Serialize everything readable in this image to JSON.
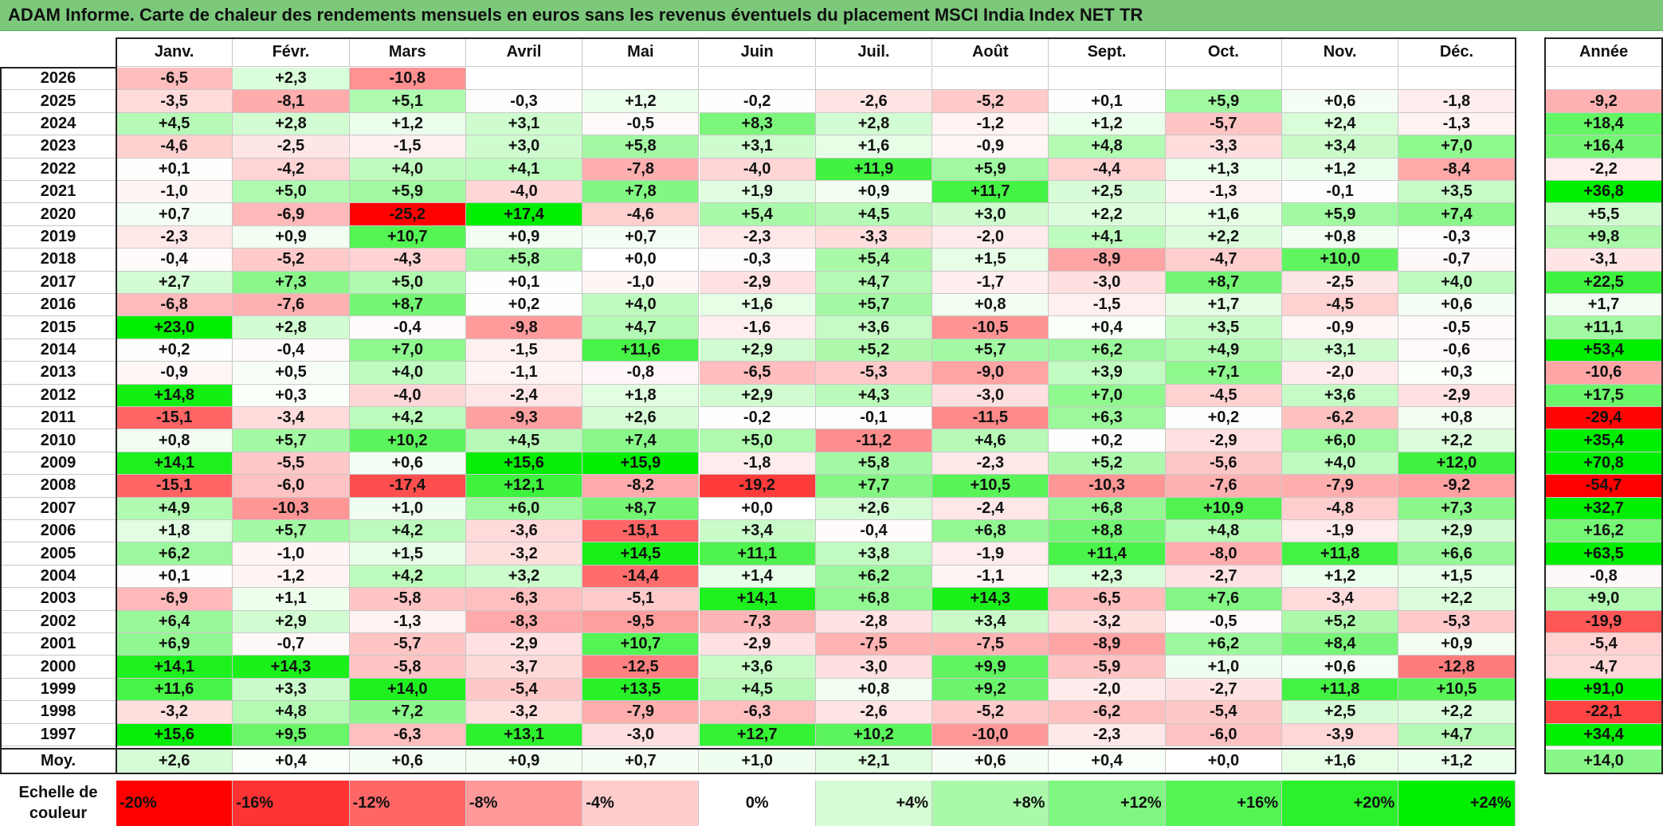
{
  "title": "ADAM Informe. Carte de chaleur des rendements mensuels en euros sans les revenus éventuels du placement MSCI India Index NET TR",
  "chart_data": {
    "type": "heatmap",
    "columns": [
      "Janv.",
      "Févr.",
      "Mars",
      "Avril",
      "Mai",
      "Juin",
      "Juil.",
      "Août",
      "Sept.",
      "Oct.",
      "Nov.",
      "Déc."
    ],
    "year_header": "Année",
    "rows": [
      {
        "year": "2026",
        "months": [
          "-6,5",
          "+2,3",
          "-10,8",
          "",
          "",
          "",
          "",
          "",
          "",
          "",
          "",
          ""
        ],
        "annual": ""
      },
      {
        "year": "2025",
        "months": [
          "-3,5",
          "-8,1",
          "+5,1",
          "-0,3",
          "+1,2",
          "-0,2",
          "-2,6",
          "-5,2",
          "+0,1",
          "+5,9",
          "+0,6",
          "-1,8"
        ],
        "annual": "-9,2"
      },
      {
        "year": "2024",
        "months": [
          "+4,5",
          "+2,8",
          "+1,2",
          "+3,1",
          "-0,5",
          "+8,3",
          "+2,8",
          "-1,2",
          "+1,2",
          "-5,7",
          "+2,4",
          "-1,3"
        ],
        "annual": "+18,4"
      },
      {
        "year": "2023",
        "months": [
          "-4,6",
          "-2,5",
          "-1,5",
          "+3,0",
          "+5,8",
          "+3,1",
          "+1,6",
          "-0,9",
          "+4,8",
          "-3,3",
          "+3,4",
          "+7,0"
        ],
        "annual": "+16,4"
      },
      {
        "year": "2022",
        "months": [
          "+0,1",
          "-4,2",
          "+4,0",
          "+4,1",
          "-7,8",
          "-4,0",
          "+11,9",
          "+5,9",
          "-4,4",
          "+1,3",
          "+1,2",
          "-8,4"
        ],
        "annual": "-2,2"
      },
      {
        "year": "2021",
        "months": [
          "-1,0",
          "+5,0",
          "+5,9",
          "-4,0",
          "+7,8",
          "+1,9",
          "+0,9",
          "+11,7",
          "+2,5",
          "-1,3",
          "-0,1",
          "+3,5"
        ],
        "annual": "+36,8"
      },
      {
        "year": "2020",
        "months": [
          "+0,7",
          "-6,9",
          "-25,2",
          "+17,4",
          "-4,6",
          "+5,4",
          "+4,5",
          "+3,0",
          "+2,2",
          "+1,6",
          "+5,9",
          "+7,4"
        ],
        "annual": "+5,5"
      },
      {
        "year": "2019",
        "months": [
          "-2,3",
          "+0,9",
          "+10,7",
          "+0,9",
          "+0,7",
          "-2,3",
          "-3,3",
          "-2,0",
          "+4,1",
          "+2,2",
          "+0,8",
          "-0,3"
        ],
        "annual": "+9,8"
      },
      {
        "year": "2018",
        "months": [
          "-0,4",
          "-5,2",
          "-4,3",
          "+5,8",
          "+0,0",
          "-0,3",
          "+5,4",
          "+1,5",
          "-8,9",
          "-4,7",
          "+10,0",
          "-0,7"
        ],
        "annual": "-3,1"
      },
      {
        "year": "2017",
        "months": [
          "+2,7",
          "+7,3",
          "+5,0",
          "+0,1",
          "-1,0",
          "-2,9",
          "+4,7",
          "-1,7",
          "-3,0",
          "+8,7",
          "-2,5",
          "+4,0"
        ],
        "annual": "+22,5"
      },
      {
        "year": "2016",
        "months": [
          "-6,8",
          "-7,6",
          "+8,7",
          "+0,2",
          "+4,0",
          "+1,6",
          "+5,7",
          "+0,8",
          "-1,5",
          "+1,7",
          "-4,5",
          "+0,6"
        ],
        "annual": "+1,7"
      },
      {
        "year": "2015",
        "months": [
          "+23,0",
          "+2,8",
          "-0,4",
          "-9,8",
          "+4,7",
          "-1,6",
          "+3,6",
          "-10,5",
          "+0,4",
          "+3,5",
          "-0,9",
          "-0,5"
        ],
        "annual": "+11,1"
      },
      {
        "year": "2014",
        "months": [
          "+0,2",
          "-0,4",
          "+7,0",
          "-1,5",
          "+11,6",
          "+2,9",
          "+5,2",
          "+5,7",
          "+6,2",
          "+4,9",
          "+3,1",
          "-0,6"
        ],
        "annual": "+53,4"
      },
      {
        "year": "2013",
        "months": [
          "-0,9",
          "+0,5",
          "+4,0",
          "-1,1",
          "-0,8",
          "-6,5",
          "-5,3",
          "-9,0",
          "+3,9",
          "+7,1",
          "-2,0",
          "+0,3"
        ],
        "annual": "-10,6"
      },
      {
        "year": "2012",
        "months": [
          "+14,8",
          "+0,3",
          "-4,0",
          "-2,4",
          "+1,8",
          "+2,9",
          "+4,3",
          "-3,0",
          "+7,0",
          "-4,5",
          "+3,6",
          "-2,9"
        ],
        "annual": "+17,5"
      },
      {
        "year": "2011",
        "months": [
          "-15,1",
          "-3,4",
          "+4,2",
          "-9,3",
          "+2,6",
          "-0,2",
          "-0,1",
          "-11,5",
          "+6,3",
          "+0,2",
          "-6,2",
          "+0,8"
        ],
        "annual": "-29,4"
      },
      {
        "year": "2010",
        "months": [
          "+0,8",
          "+5,7",
          "+10,2",
          "+4,5",
          "+7,4",
          "+5,0",
          "-11,2",
          "+4,6",
          "+0,2",
          "-2,9",
          "+6,0",
          "+2,2"
        ],
        "annual": "+35,4"
      },
      {
        "year": "2009",
        "months": [
          "+14,1",
          "-5,5",
          "+0,6",
          "+15,6",
          "+15,9",
          "-1,8",
          "+5,8",
          "-2,3",
          "+5,2",
          "-5,6",
          "+4,0",
          "+12,0"
        ],
        "annual": "+70,8"
      },
      {
        "year": "2008",
        "months": [
          "-15,1",
          "-6,0",
          "-17,4",
          "+12,1",
          "-8,2",
          "-19,2",
          "+7,7",
          "+10,5",
          "-10,3",
          "-7,6",
          "-7,9",
          "-9,2"
        ],
        "annual": "-54,7"
      },
      {
        "year": "2007",
        "months": [
          "+4,9",
          "-10,3",
          "+1,0",
          "+6,0",
          "+8,7",
          "+0,0",
          "+2,6",
          "-2,4",
          "+6,8",
          "+10,9",
          "-4,8",
          "+7,3"
        ],
        "annual": "+32,7"
      },
      {
        "year": "2006",
        "months": [
          "+1,8",
          "+5,7",
          "+4,2",
          "-3,6",
          "-15,1",
          "+3,4",
          "-0,4",
          "+6,8",
          "+8,8",
          "+4,8",
          "-1,9",
          "+2,9"
        ],
        "annual": "+16,2"
      },
      {
        "year": "2005",
        "months": [
          "+6,2",
          "-1,0",
          "+1,5",
          "-3,2",
          "+14,5",
          "+11,1",
          "+3,8",
          "-1,9",
          "+11,4",
          "-8,0",
          "+11,8",
          "+6,6"
        ],
        "annual": "+63,5"
      },
      {
        "year": "2004",
        "months": [
          "+0,1",
          "-1,2",
          "+4,2",
          "+3,2",
          "-14,4",
          "+1,4",
          "+6,2",
          "-1,1",
          "+2,3",
          "-2,7",
          "+1,2",
          "+1,5"
        ],
        "annual": "-0,8"
      },
      {
        "year": "2003",
        "months": [
          "-6,9",
          "+1,1",
          "-5,8",
          "-6,3",
          "-5,1",
          "+14,1",
          "+6,8",
          "+14,3",
          "-6,5",
          "+7,6",
          "-3,4",
          "+2,2"
        ],
        "annual": "+9,0"
      },
      {
        "year": "2002",
        "months": [
          "+6,4",
          "+2,9",
          "-1,3",
          "-8,3",
          "-9,5",
          "-7,3",
          "-2,8",
          "+3,4",
          "-3,2",
          "-0,5",
          "+5,2",
          "-5,3"
        ],
        "annual": "-19,9"
      },
      {
        "year": "2001",
        "months": [
          "+6,9",
          "-0,7",
          "-5,7",
          "-2,9",
          "+10,7",
          "-2,9",
          "-7,5",
          "-7,5",
          "-8,9",
          "+6,2",
          "+8,4",
          "+0,9"
        ],
        "annual": "-5,4"
      },
      {
        "year": "2000",
        "months": [
          "+14,1",
          "+14,3",
          "-5,8",
          "-3,7",
          "-12,5",
          "+3,6",
          "-3,0",
          "+9,9",
          "-5,9",
          "+1,0",
          "+0,6",
          "-12,8"
        ],
        "annual": "-4,7"
      },
      {
        "year": "1999",
        "months": [
          "+11,6",
          "+3,3",
          "+14,0",
          "-5,4",
          "+13,5",
          "+4,5",
          "+0,8",
          "+9,2",
          "-2,0",
          "-2,7",
          "+11,8",
          "+10,5"
        ],
        "annual": "+91,0"
      },
      {
        "year": "1998",
        "months": [
          "-3,2",
          "+4,8",
          "+7,2",
          "-3,2",
          "-7,9",
          "-6,3",
          "-2,6",
          "-5,2",
          "-6,2",
          "-5,4",
          "+2,5",
          "+2,2"
        ],
        "annual": "-22,1"
      },
      {
        "year": "1997",
        "months": [
          "+15,6",
          "+9,5",
          "-6,3",
          "+13,1",
          "-3,0",
          "+12,7",
          "+10,2",
          "-10,0",
          "-2,3",
          "-6,0",
          "-3,9",
          "+4,7"
        ],
        "annual": "+34,4"
      }
    ],
    "average": {
      "label": "Moy.",
      "months": [
        "+2,6",
        "+0,4",
        "+0,6",
        "+0,9",
        "+0,7",
        "+1,0",
        "+2,1",
        "+0,6",
        "+0,4",
        "+0,0",
        "+1,6",
        "+1,2"
      ],
      "annual": "+14,0"
    },
    "scale": {
      "label_line1": "Echelle de",
      "label_line2": "couleur",
      "stops": [
        {
          "label": "-20%",
          "value": -20
        },
        {
          "label": "-16%",
          "value": -16
        },
        {
          "label": "-12%",
          "value": -12
        },
        {
          "label": "-8%",
          "value": -8
        },
        {
          "label": "-4%",
          "value": -4
        },
        {
          "label": "0%",
          "value": 0
        },
        {
          "label": "+4%",
          "value": 4
        },
        {
          "label": "+8%",
          "value": 8
        },
        {
          "label": "+12%",
          "value": 12
        },
        {
          "label": "+16%",
          "value": 16
        },
        {
          "label": "+20%",
          "value": 20
        },
        {
          "label": "+24%",
          "value": 24
        }
      ]
    },
    "colors": {
      "negative": "#ff0000",
      "neutral": "#ffffff",
      "positive": "#00ee00"
    }
  }
}
